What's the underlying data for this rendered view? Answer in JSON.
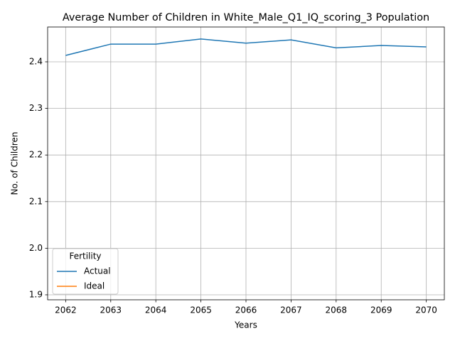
{
  "chart_data": {
    "type": "line",
    "title": "Average Number of Children in White_Male_Q1_IQ_scoring_3 Population",
    "x_label": "Years",
    "y_label": "No. of Children",
    "x": [
      2062,
      2063,
      2064,
      2065,
      2066,
      2067,
      2068,
      2069,
      2070
    ],
    "series": [
      {
        "name": "Actual",
        "color": "#1f77b4",
        "values": [
          2.4137,
          2.438,
          2.438,
          2.449,
          2.44,
          2.447,
          2.43,
          2.435,
          2.432
        ]
      },
      {
        "name": "Ideal",
        "color": "#ff7f0e",
        "values": [
          null,
          null,
          null,
          null,
          null,
          null,
          null,
          null,
          null
        ]
      }
    ],
    "xlim": [
      2061.6,
      2070.4
    ],
    "xticks": [
      2062,
      2063,
      2064,
      2065,
      2066,
      2067,
      2068,
      2069,
      2070
    ],
    "ylim": [
      1.8893,
      2.4747
    ],
    "yticks": [
      1.9,
      {
        "value": 2,
        "label": "2.0"
      },
      2.1,
      2.2,
      2.3,
      2.4
    ],
    "grid": true,
    "legend_title": "Fertility",
    "legend_loc": "lower left"
  }
}
